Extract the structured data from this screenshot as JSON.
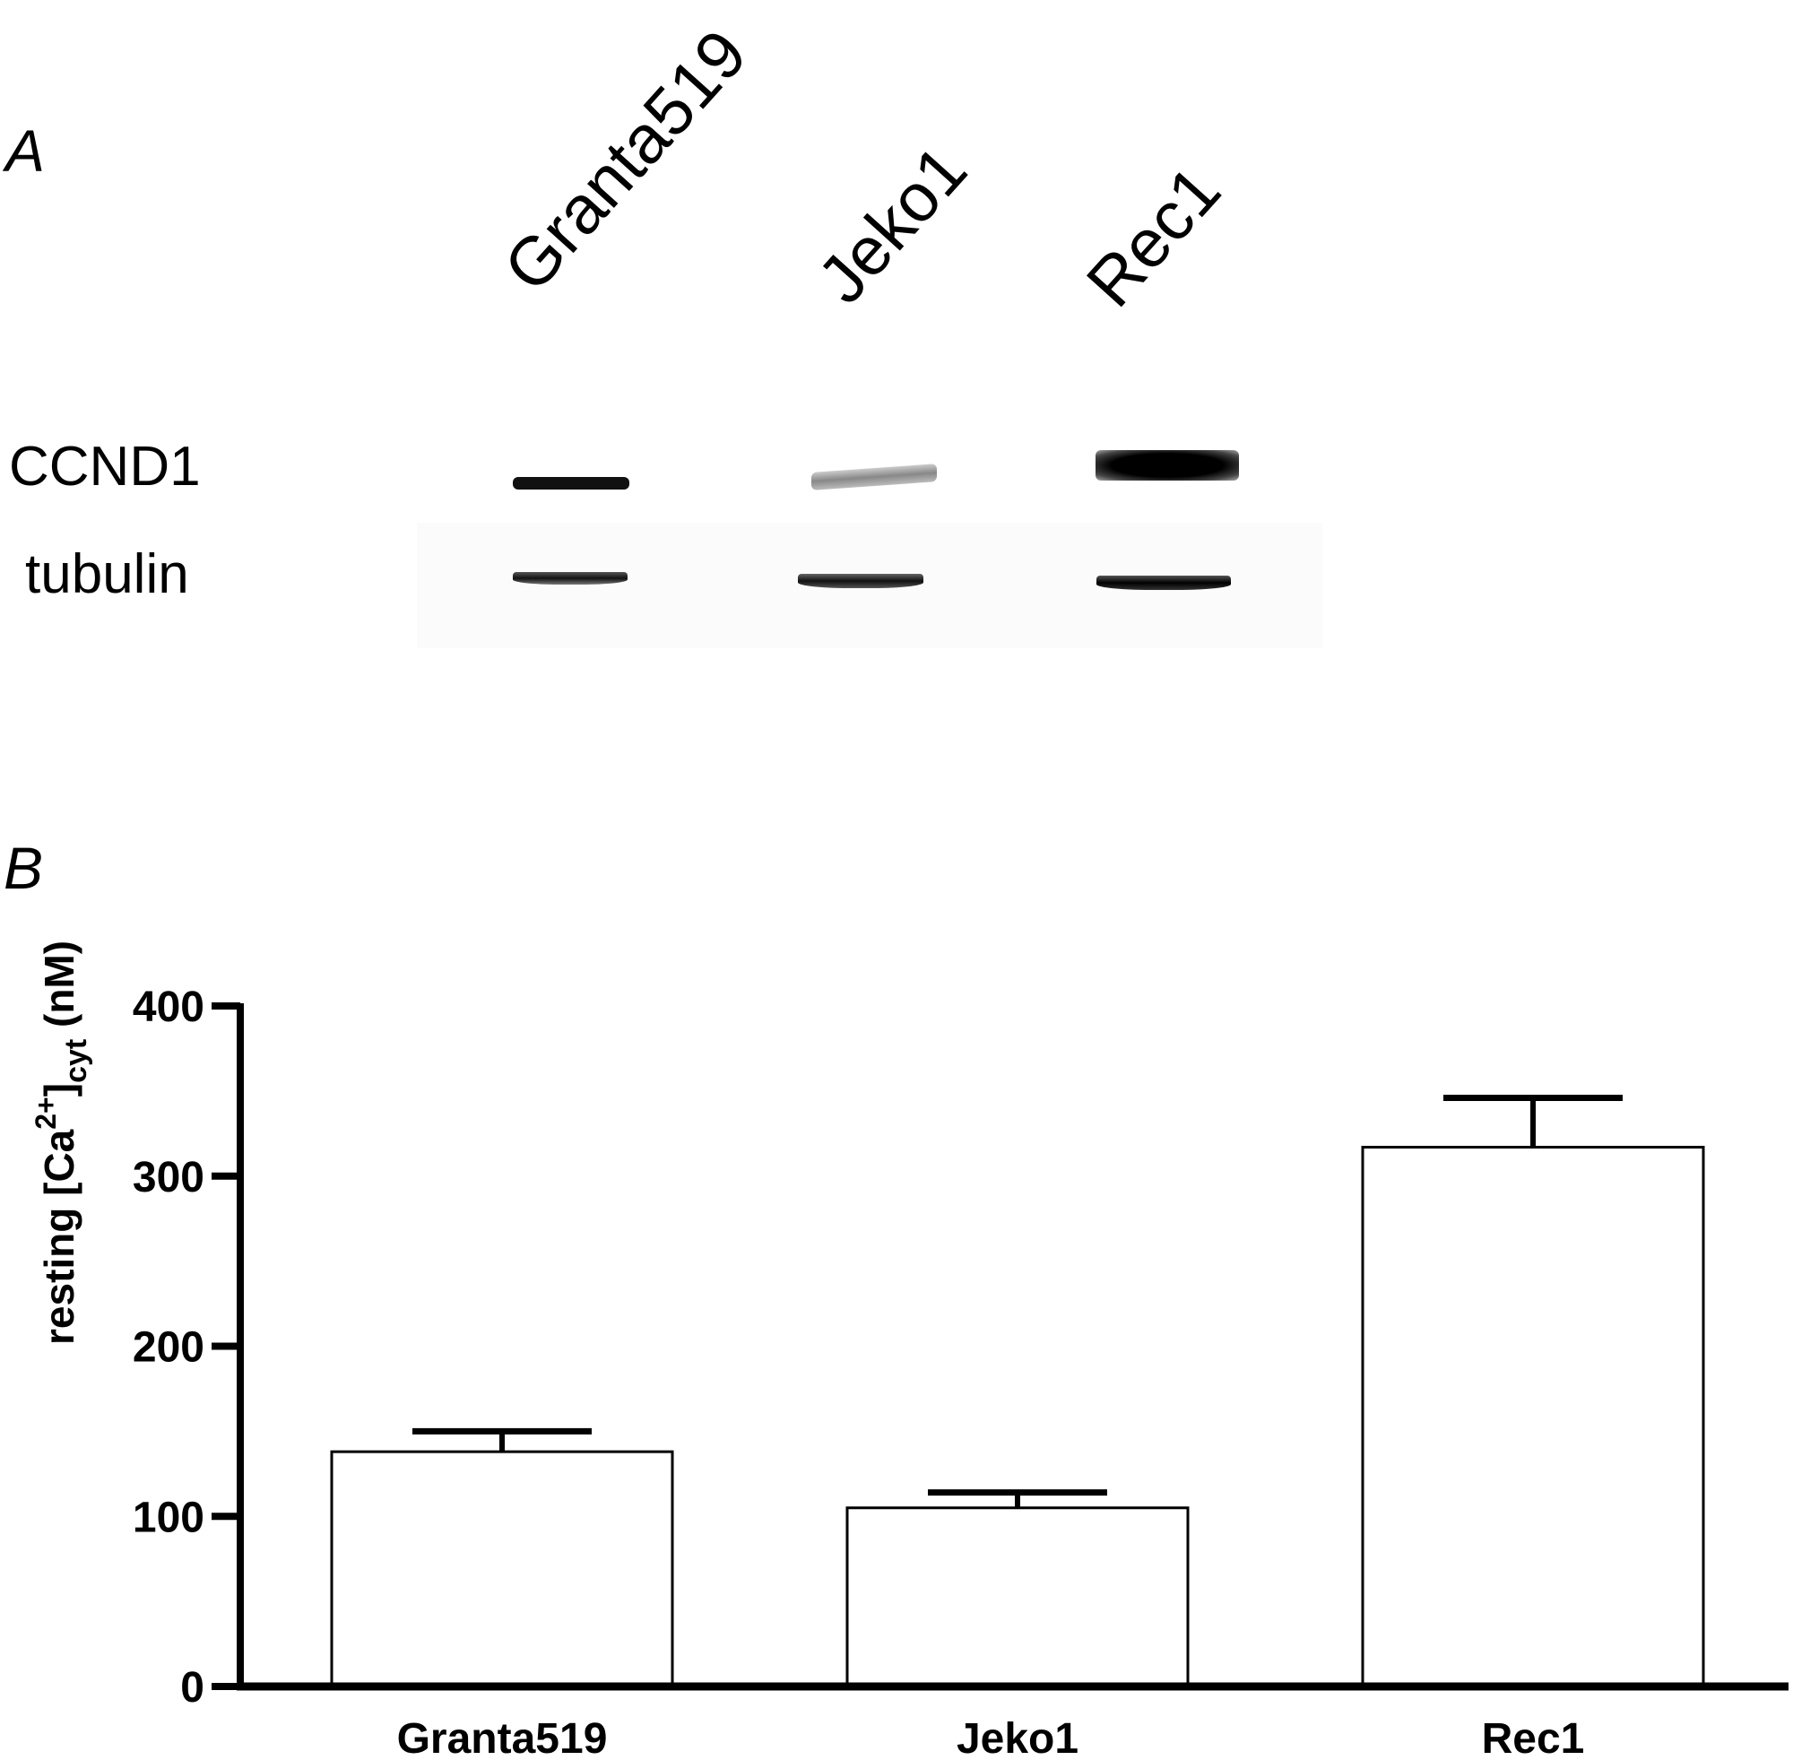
{
  "panel_a": {
    "label": "A",
    "lanes": [
      "Granta519",
      "Jeko1",
      "Rec1"
    ],
    "rows": [
      "CCND1",
      "tubulin"
    ]
  },
  "panel_b": {
    "label": "B"
  },
  "chart_data": {
    "type": "bar",
    "title": "",
    "categories": [
      "Granta519",
      "Jeko1",
      "Rec1"
    ],
    "values": [
      138,
      105,
      317
    ],
    "error_upper": [
      12,
      9,
      29
    ],
    "xlabel": "",
    "ylabel": "resting [Ca2+]cyt (nM)",
    "ylabel_parts": {
      "main": "resting [Ca",
      "sup": "2+",
      "close": "]",
      "sub": "cyt",
      "unit": " (nM)"
    },
    "ylim": [
      0,
      400
    ],
    "yticks": [
      "0",
      "100",
      "200",
      "300",
      "400"
    ],
    "grid": false,
    "legend": null,
    "bar_fill": "#ffffff",
    "bar_stroke": "#000000"
  }
}
